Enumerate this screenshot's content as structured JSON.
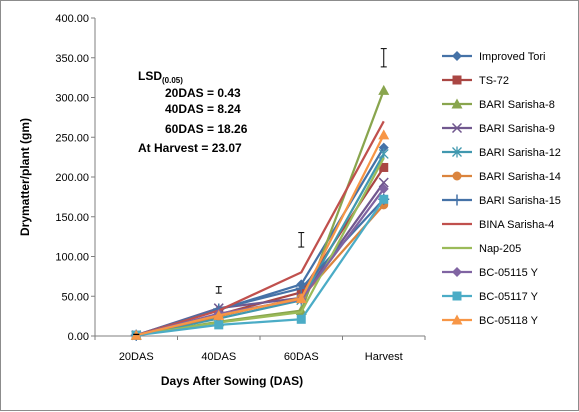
{
  "chart_data": {
    "type": "line",
    "categories": [
      "20DAS",
      "40DAS",
      "60DAS",
      "Harvest"
    ],
    "xlabel": "Days After Sowing (DAS)",
    "ylabel": "Drymatter/plant (gm)",
    "ylim": [
      0,
      400
    ],
    "yticks": [
      "0.00",
      "50.00",
      "100.00",
      "150.00",
      "200.00",
      "250.00",
      "300.00",
      "350.00",
      "400.00"
    ],
    "grid": false,
    "legend_position": "right",
    "error_bars": [
      {
        "category": "20DAS",
        "center": 2,
        "half_width": 0.2
      },
      {
        "category": "40DAS",
        "center": 58,
        "half_width": 4.1
      },
      {
        "category": "60DAS",
        "center": 121,
        "half_width": 9.1
      },
      {
        "category": "Harvest",
        "center": 350,
        "half_width": 11.5
      }
    ],
    "annotation": {
      "heading": "LSD",
      "subscript": "(0.05)",
      "lines": [
        "20DAS = 0.43",
        "40DAS = 8.24",
        "60DAS = 18.26",
        "At Harvest = 23.07"
      ]
    },
    "series": [
      {
        "name": "Improved Tori",
        "color": "#4572a7",
        "marker": "diamond",
        "values": [
          1,
          33,
          65,
          237
        ]
      },
      {
        "name": "TS-72",
        "color": "#aa4643",
        "marker": "square",
        "values": [
          1,
          27,
          55,
          212
        ]
      },
      {
        "name": "BARI Sarisha-8",
        "color": "#89a54e",
        "marker": "triangle",
        "values": [
          1,
          18,
          32,
          309
        ]
      },
      {
        "name": "BARI Sarisha-9",
        "color": "#71588f",
        "marker": "x",
        "values": [
          1,
          35,
          48,
          193
        ]
      },
      {
        "name": "BARI Sarisha-12",
        "color": "#4198af",
        "marker": "star",
        "values": [
          1,
          22,
          45,
          229
        ]
      },
      {
        "name": "BARI Sarisha-14",
        "color": "#db843d",
        "marker": "circle",
        "values": [
          1,
          25,
          48,
          165
        ]
      },
      {
        "name": "BARI Sarisha-15",
        "color": "#4572a7",
        "marker": "plus",
        "values": [
          1,
          34,
          60,
          172
        ]
      },
      {
        "name": "BINA Sarisha-4",
        "color": "#c0504d",
        "marker": "none",
        "values": [
          1,
          32,
          80,
          270
        ]
      },
      {
        "name": "Nap-205",
        "color": "#9bbb59",
        "marker": "none",
        "values": [
          1,
          17,
          30,
          224
        ]
      },
      {
        "name": "BC-05115 Y",
        "color": "#8064a2",
        "marker": "diamond",
        "values": [
          1,
          28,
          46,
          185
        ]
      },
      {
        "name": "BC-05117 Y",
        "color": "#4bacc6",
        "marker": "square",
        "values": [
          1,
          14,
          21,
          172
        ]
      },
      {
        "name": "BC-05118 Y",
        "color": "#f79646",
        "marker": "triangle",
        "values": [
          1,
          26,
          47,
          253
        ]
      }
    ]
  }
}
